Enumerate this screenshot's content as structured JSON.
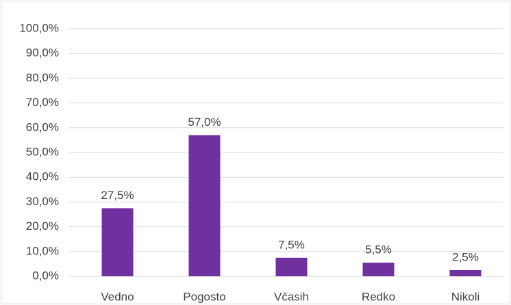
{
  "chart_data": {
    "type": "bar",
    "categories": [
      "Vedno",
      "Pogosto",
      "Včasih",
      "Redko",
      "Nikoli"
    ],
    "values": [
      27.5,
      57.0,
      7.5,
      5.5,
      2.5
    ],
    "value_labels": [
      "27,5%",
      "57,0%",
      "7,5%",
      "5,5%",
      "2,5%"
    ],
    "color": "#7030a0",
    "ylim": [
      0,
      100
    ],
    "yticks": [
      {
        "value": 0,
        "label": "0,0%"
      },
      {
        "value": 10,
        "label": "10,0%"
      },
      {
        "value": 20,
        "label": "20,0%"
      },
      {
        "value": 30,
        "label": "30,0%"
      },
      {
        "value": 40,
        "label": "40,0%"
      },
      {
        "value": 50,
        "label": "50,0%"
      },
      {
        "value": 60,
        "label": "60,0%"
      },
      {
        "value": 70,
        "label": "70,0%"
      },
      {
        "value": 80,
        "label": "80,0%"
      },
      {
        "value": 90,
        "label": "90,0%"
      },
      {
        "value": 100,
        "label": "100,0%"
      }
    ],
    "grid": true
  }
}
